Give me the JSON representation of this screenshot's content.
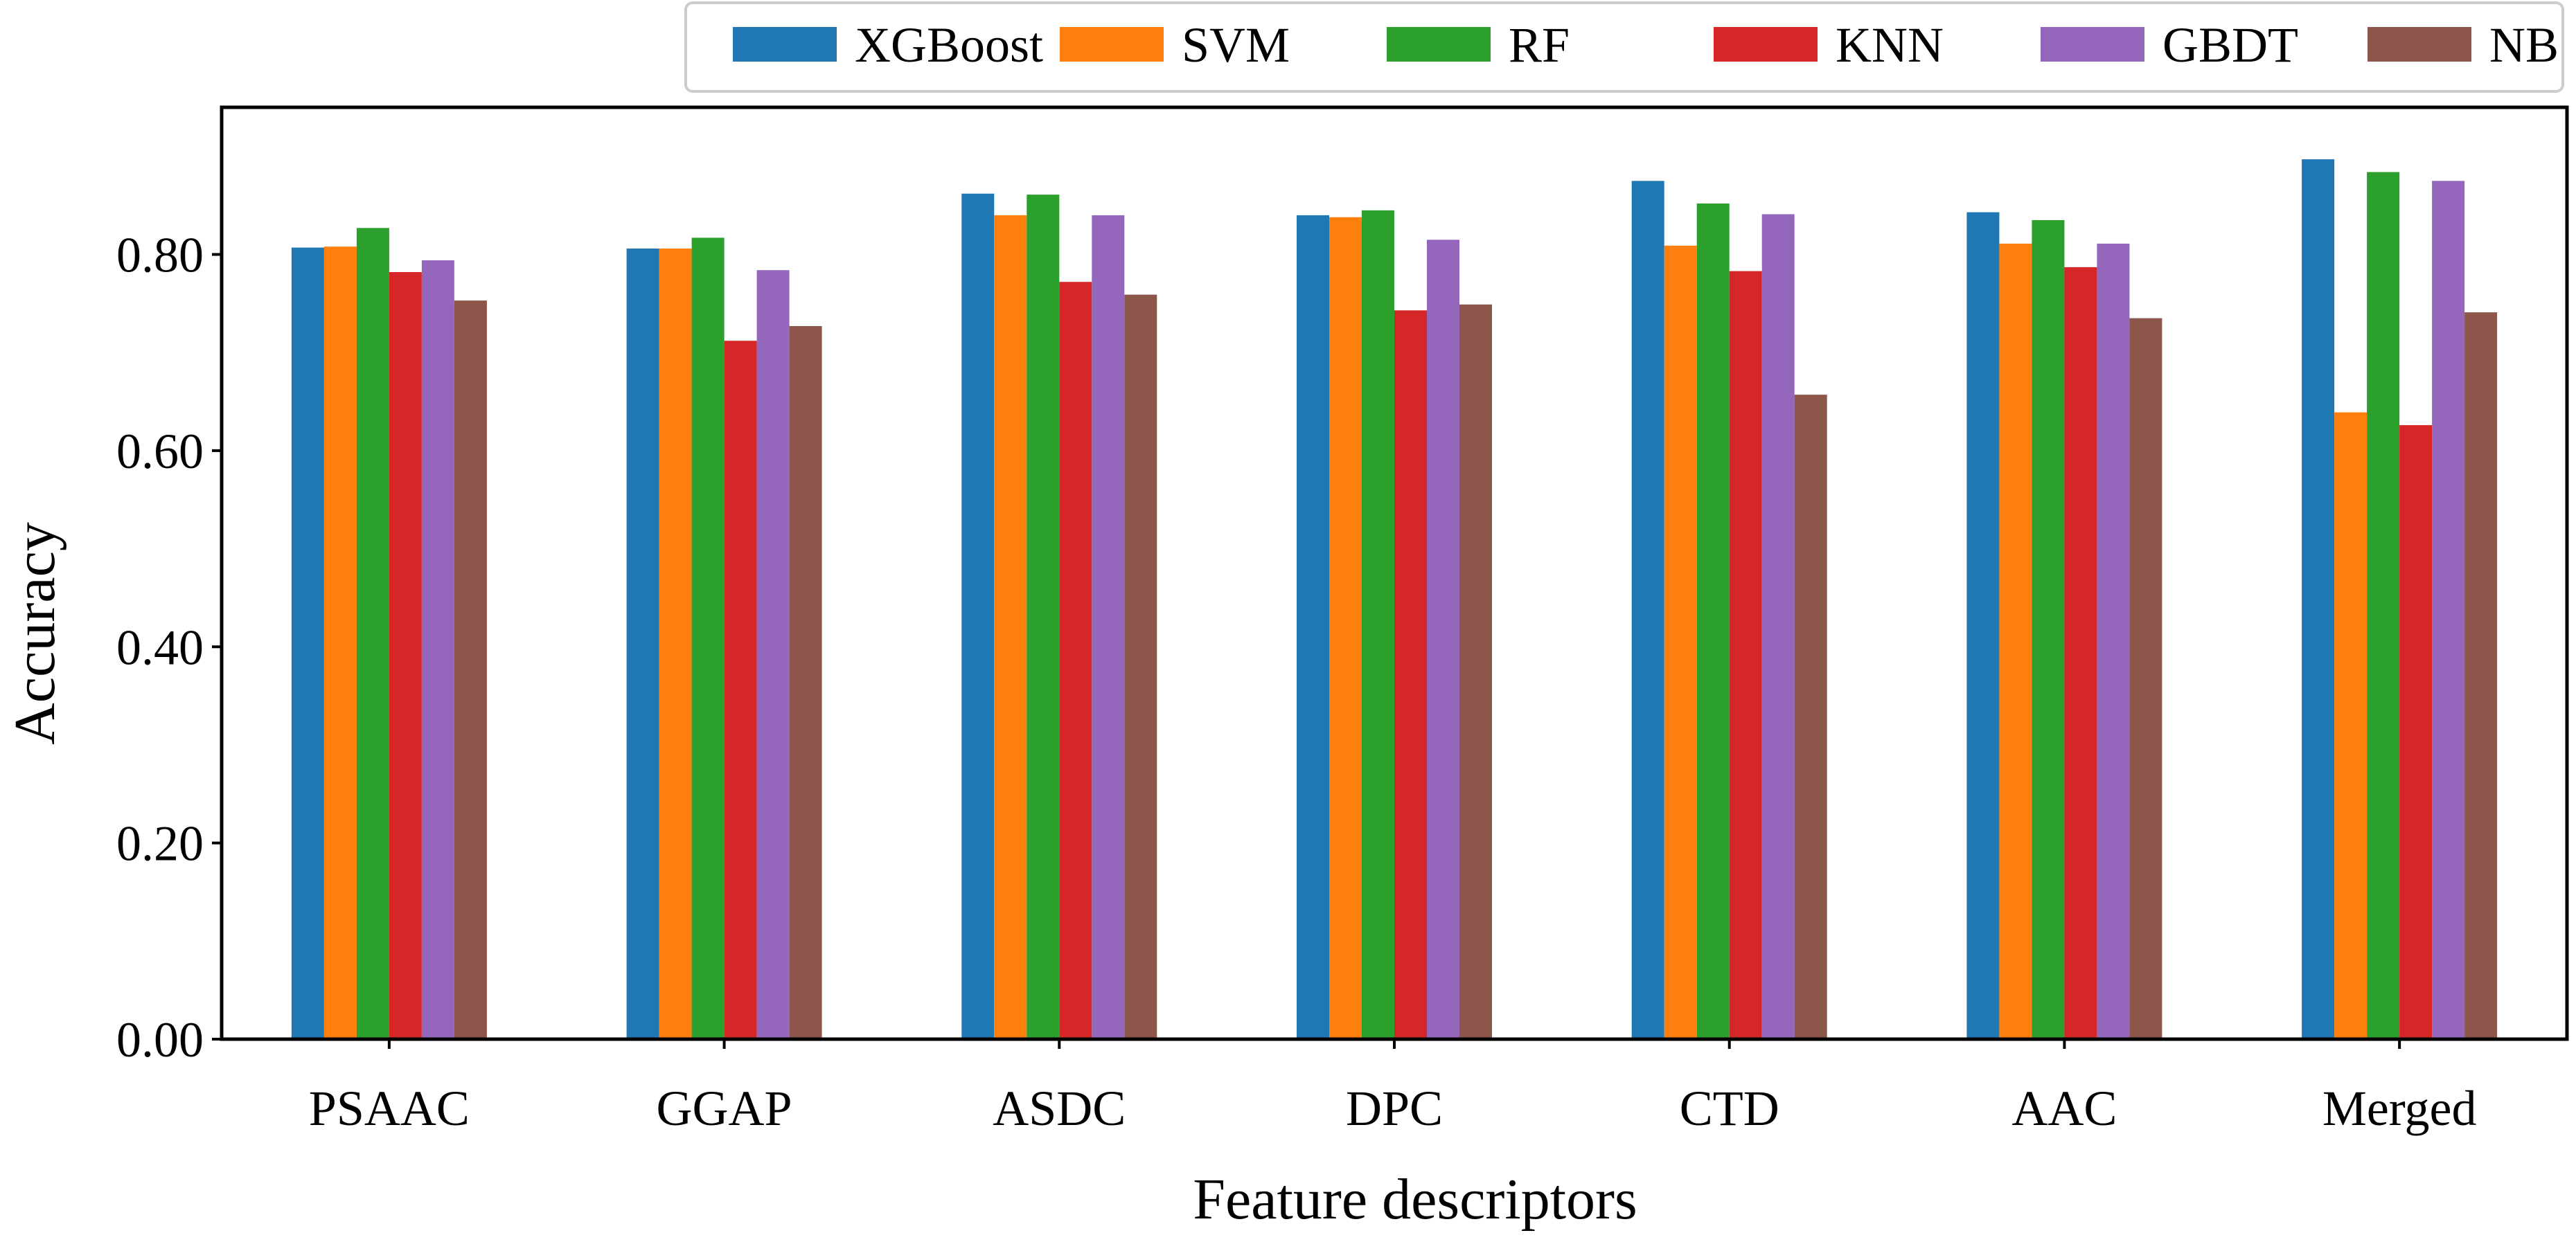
{
  "chart_data": {
    "type": "bar",
    "title": "",
    "xlabel": "Feature descriptors",
    "ylabel": "Accuracy",
    "ylim": [
      0,
      0.95
    ],
    "yticks": [
      0.0,
      0.2,
      0.4,
      0.6,
      0.8
    ],
    "ytick_labels": [
      "0.00",
      "0.20",
      "0.40",
      "0.60",
      "0.80"
    ],
    "grid": false,
    "legend_position": "top-right",
    "categories": [
      "PSAAC",
      "GGAP",
      "ASDC",
      "DPC",
      "CTD",
      "AAC",
      "Merged"
    ],
    "series": [
      {
        "name": "XGBoost",
        "color": "#1f77b4",
        "values": [
          0.807,
          0.806,
          0.862,
          0.84,
          0.875,
          0.843,
          0.897
        ]
      },
      {
        "name": "SVM",
        "color": "#ff7f0e",
        "values": [
          0.808,
          0.806,
          0.84,
          0.838,
          0.809,
          0.811,
          0.639
        ]
      },
      {
        "name": "RF",
        "color": "#2ca02c",
        "values": [
          0.827,
          0.817,
          0.861,
          0.845,
          0.852,
          0.835,
          0.884
        ]
      },
      {
        "name": "KNN",
        "color": "#d62728",
        "values": [
          0.782,
          0.712,
          0.772,
          0.743,
          0.783,
          0.787,
          0.626
        ]
      },
      {
        "name": "GBDT",
        "color": "#9467bd",
        "values": [
          0.794,
          0.784,
          0.84,
          0.815,
          0.841,
          0.811,
          0.875
        ]
      },
      {
        "name": "NB",
        "color": "#8c564b",
        "values": [
          0.753,
          0.727,
          0.759,
          0.749,
          0.657,
          0.735,
          0.741
        ]
      }
    ]
  }
}
